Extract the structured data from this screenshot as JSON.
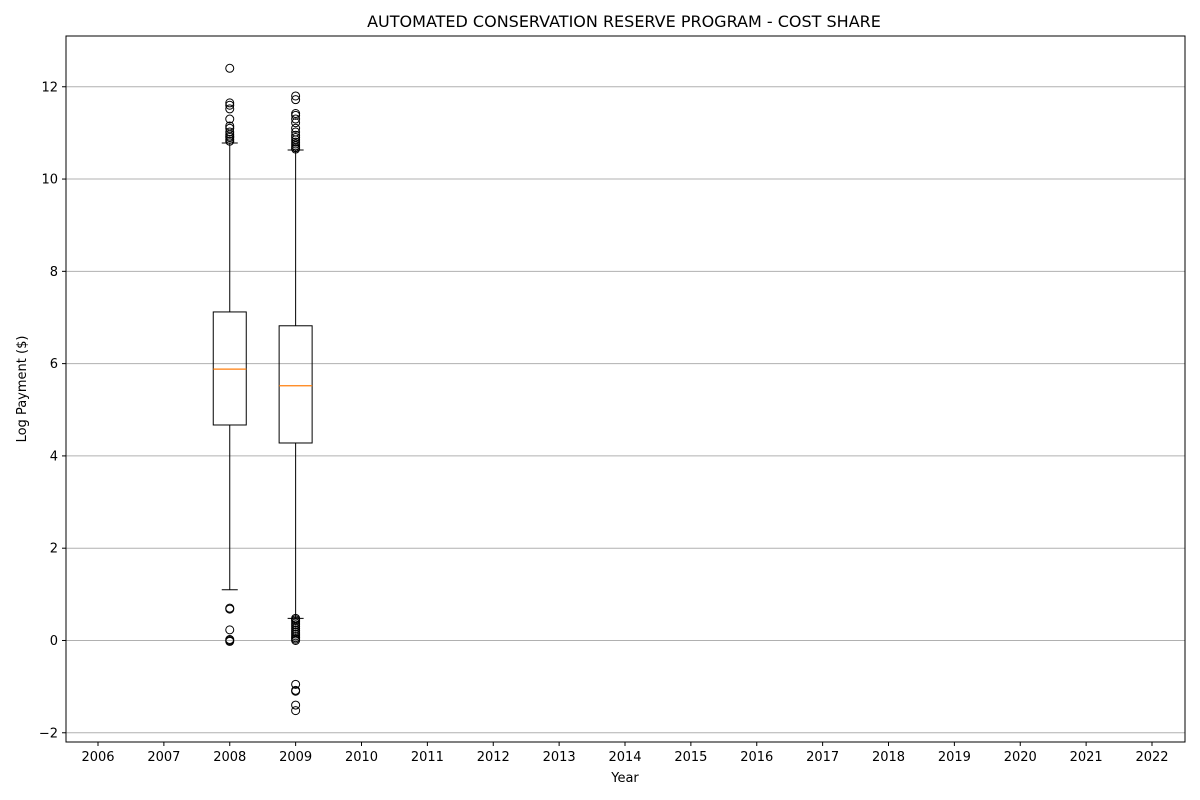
{
  "chart_data": {
    "type": "boxplot",
    "title": "AUTOMATED CONSERVATION RESERVE PROGRAM - COST SHARE",
    "xlabel": "Year",
    "ylabel": "Log Payment ($)",
    "categories": [
      "2006",
      "2007",
      "2008",
      "2009",
      "2010",
      "2011",
      "2012",
      "2013",
      "2014",
      "2015",
      "2016",
      "2017",
      "2018",
      "2019",
      "2020",
      "2021",
      "2022"
    ],
    "ylim": [
      -2.2,
      13.1
    ],
    "yticks": [
      -2,
      0,
      2,
      4,
      6,
      8,
      10,
      12
    ],
    "grid": "y",
    "boxes": [
      {
        "category": "2008",
        "whisker_low": 1.1,
        "q1": 4.67,
        "median": 5.88,
        "q3": 7.12,
        "whisker_high": 10.78,
        "outliers": [
          12.4,
          11.65,
          11.6,
          11.52,
          11.3,
          11.15,
          11.1,
          11.02,
          10.97,
          10.93,
          10.9,
          10.86,
          10.82,
          0.7,
          0.68,
          0.23,
          0.02,
          0.0,
          -0.02
        ]
      },
      {
        "category": "2009",
        "whisker_low": 0.48,
        "q1": 4.28,
        "median": 5.52,
        "q3": 6.82,
        "whisker_high": 10.63,
        "outliers": [
          11.8,
          11.72,
          11.42,
          11.38,
          11.3,
          11.22,
          11.1,
          11.02,
          10.95,
          10.9,
          10.85,
          10.8,
          10.76,
          10.72,
          10.68,
          10.65,
          0.48,
          0.45,
          0.42,
          0.38,
          0.34,
          0.3,
          0.26,
          0.22,
          0.18,
          0.14,
          0.1,
          0.06,
          0.03,
          0.0,
          -0.95,
          -1.08,
          -1.1,
          -1.4,
          -1.52
        ]
      }
    ],
    "colors": {
      "median": "#ff7f0e",
      "box": "#000000",
      "grid": "#b0b0b0"
    }
  }
}
